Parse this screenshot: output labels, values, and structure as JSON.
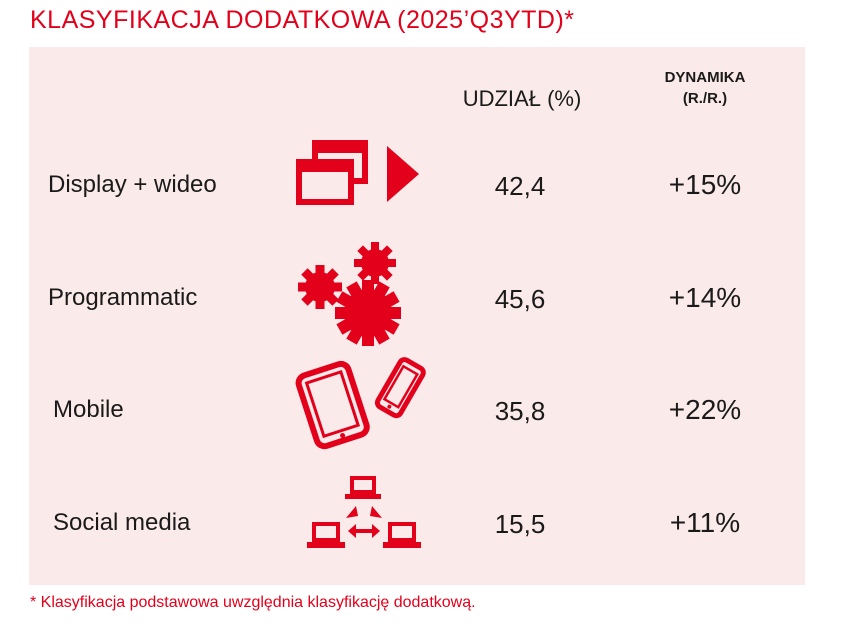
{
  "title": "KLASYFIKACJA DODATKOWA (2025’Q3YTD)*",
  "headers": {
    "share": "UDZIAŁ (%)",
    "dynamics_line1": "DYNAMIKA",
    "dynamics_line2": "(R./R.)"
  },
  "rows": [
    {
      "label": "Display + wideo",
      "share": "42,4",
      "dynamics": "+15%",
      "icon": "display-video-icon"
    },
    {
      "label": "Programmatic",
      "share": "45,6",
      "dynamics": "+14%",
      "icon": "gears-icon"
    },
    {
      "label": "Mobile",
      "share": "35,8",
      "dynamics": "+22%",
      "icon": "tablet-phone-icon"
    },
    {
      "label": "Social media",
      "share": "15,5",
      "dynamics": "+11%",
      "icon": "network-laptops-icon"
    }
  ],
  "footnote": "* Klasyfikacja podstawowa uwzględnia klasyfikację dodatkową.",
  "colors": {
    "accent": "#e3001b",
    "panel": "#fbeaea",
    "text": "#1a1a1a"
  }
}
